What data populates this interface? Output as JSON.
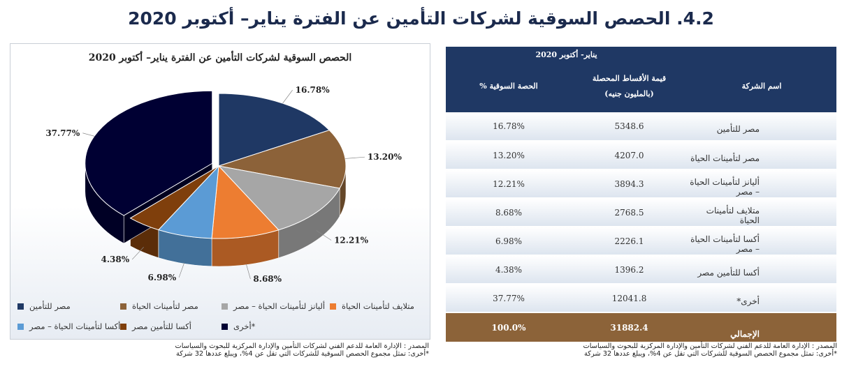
{
  "page_title": "4.2. الحصص السوقية لشركات التأمين عن الفترة يناير– أكتوبر 2020",
  "chart_data": {
    "type": "pie",
    "title": "الحصص السوقية لشركات التأمين عن الفترة يناير– أكتوبر 2020",
    "unit": "%",
    "slices": [
      {
        "name": "مصر للتأمين",
        "value": 16.78,
        "label": "16.78%",
        "color": "#1f3864"
      },
      {
        "name": "مصر لتأمينات الحياة",
        "value": 13.2,
        "label": "13.20%",
        "color": "#8c6239"
      },
      {
        "name": "أليانز لتأمينات الحياة – مصر",
        "value": 12.21,
        "label": "12.21%",
        "color": "#a6a6a6"
      },
      {
        "name": "متلايف لتأمينات الحياة",
        "value": 8.68,
        "label": "8.68%",
        "color": "#ed7d31"
      },
      {
        "name": "أكسا لتأمينات الحياة – مصر",
        "value": 6.98,
        "label": "6.98%",
        "color": "#5b9bd5"
      },
      {
        "name": "أكسا للتأمين مصر",
        "value": 4.38,
        "label": "4.38%",
        "color": "#7f3f0c"
      },
      {
        "name": "أخرى*",
        "value": 37.77,
        "label": "37.77%",
        "color": "#000033"
      }
    ],
    "legend_position": "bottom"
  },
  "source_note": {
    "line1": "المصدر : الإدارة العامة للدعم الفني لشركات التأمين والإدارة المركزية للبحوث والسياسات",
    "line2": "*أخرى: تمثل مجموع الحصص السوقية للشركات التي تقل عن 4%، ويبلغ عددها 32 شركة"
  },
  "table": {
    "period_header": "يناير- أكتوبر 2020",
    "col_company": "اسم الشركة",
    "col_premiums": "قيمة الأقساط المحصلة (بالمليون جنيه)",
    "col_share": "الحصة السوقية %",
    "rows": [
      {
        "company": "مصر للتأمين",
        "premiums": "5348.6",
        "share": "16.78%"
      },
      {
        "company": "مصر لتأمينات الحياة",
        "premiums": "4207.0",
        "share": "13.20%"
      },
      {
        "company": "أليانز لتأمينات الحياة – مصر",
        "premiums": "3894.3",
        "share": "12.21%"
      },
      {
        "company": "متلايف لتأمينات الحياة",
        "premiums": "2768.5",
        "share": "8.68%"
      },
      {
        "company": "أكسا لتأمينات الحياة – مصر",
        "premiums": "2226.1",
        "share": "6.98%"
      },
      {
        "company": "أكسا للتأمين مصر",
        "premiums": "1396.2",
        "share": "4.38%"
      },
      {
        "company": "أخرى*",
        "premiums": "12041.8",
        "share": "37.77%"
      }
    ],
    "total": {
      "company": "الإجمالي",
      "premiums": "31882.4",
      "share": "100.0%"
    }
  }
}
